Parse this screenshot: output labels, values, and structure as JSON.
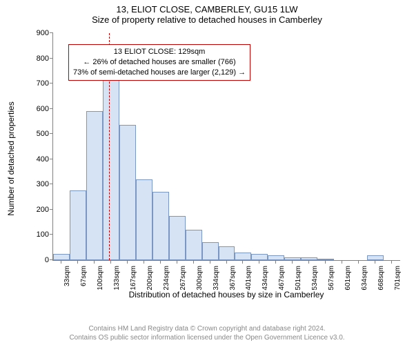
{
  "title": {
    "line1": "13, ELIOT CLOSE, CAMBERLEY, GU15 1LW",
    "line2": "Size of property relative to detached houses in Camberley"
  },
  "chart": {
    "type": "histogram",
    "ylabel": "Number of detached properties",
    "xlabel": "Distribution of detached houses by size in Camberley",
    "ylim_max": 900,
    "ytick_step": 100,
    "yticks": [
      0,
      100,
      200,
      300,
      400,
      500,
      600,
      700,
      800,
      900
    ],
    "x_categories": [
      "33sqm",
      "67sqm",
      "100sqm",
      "133sqm",
      "167sqm",
      "200sqm",
      "234sqm",
      "267sqm",
      "300sqm",
      "334sqm",
      "367sqm",
      "401sqm",
      "434sqm",
      "467sqm",
      "501sqm",
      "534sqm",
      "567sqm",
      "601sqm",
      "634sqm",
      "668sqm",
      "701sqm"
    ],
    "values": [
      25,
      275,
      590,
      740,
      535,
      320,
      270,
      175,
      120,
      70,
      55,
      30,
      25,
      18,
      12,
      10,
      5,
      0,
      0,
      18,
      0
    ],
    "bar_fill": "#d6e3f5",
    "bar_border": "#7a97c4",
    "background_color": "#ffffff",
    "axis_color": "#808080",
    "bar_width_ratio": 1.0
  },
  "reference_line": {
    "value_sqm": 129,
    "color": "#c00000"
  },
  "annotation": {
    "line1": "13 ELIOT CLOSE: 129sqm",
    "line2": "← 26% of detached houses are smaller (766)",
    "line3": "73% of semi-detached houses are larger (2,129) →",
    "border_color": "#c00000",
    "background": "#ffffff",
    "fontsize": 11
  },
  "footer": {
    "line1": "Contains HM Land Registry data © Crown copyright and database right 2024.",
    "line2": "Contains OS public sector information licensed under the Open Government Licence v3.0.",
    "color": "#888888"
  }
}
